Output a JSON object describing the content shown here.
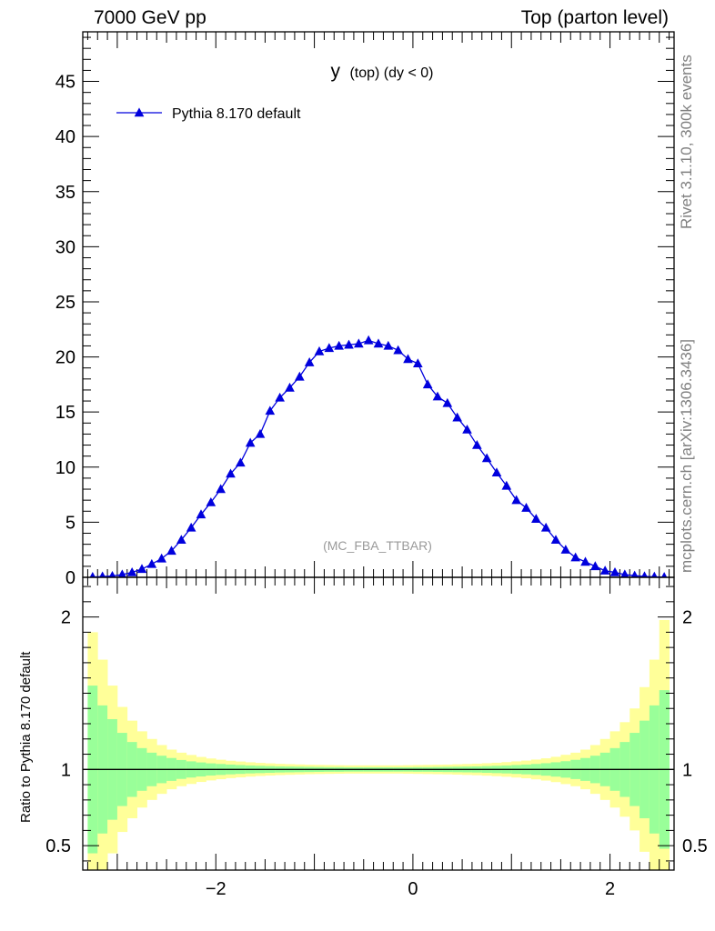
{
  "header": {
    "left": "7000 GeV pp",
    "right": "Top (parton level)"
  },
  "side_notes": {
    "rivet": "Rivet 3.1.10,  300k events",
    "source": "mcplots.cern.ch [arXiv:1306.3436]"
  },
  "colors": {
    "series": "#0000dd",
    "band_inner": "#99ff99",
    "band_outer": "#ffff99",
    "watermark": "#9a9a9a"
  },
  "chart_data": [
    {
      "type": "scatter",
      "title_main": "y",
      "title_sub": "(top) (dy < 0)",
      "watermark": "(MC_FBA_TTBAR)",
      "xlim": [
        -3.35,
        2.65
      ],
      "ylim": [
        0,
        49.5
      ],
      "y_ticks": [
        0,
        5,
        10,
        15,
        20,
        25,
        30,
        35,
        40,
        45
      ],
      "y_tick_labels": [
        "0",
        "5",
        "10",
        "15",
        "20",
        "25",
        "30",
        "35",
        "40",
        "45"
      ],
      "legend": {
        "position": "top-left",
        "marker": "triangle"
      },
      "series": [
        {
          "name": "Pythia 8.170 default",
          "x": [
            -3.25,
            -3.15,
            -3.05,
            -2.95,
            -2.85,
            -2.75,
            -2.65,
            -2.55,
            -2.45,
            -2.35,
            -2.25,
            -2.15,
            -2.05,
            -1.95,
            -1.85,
            -1.75,
            -1.65,
            -1.55,
            -1.45,
            -1.35,
            -1.25,
            -1.15,
            -1.05,
            -0.95,
            -0.85,
            -0.75,
            -0.65,
            -0.55,
            -0.45,
            -0.35,
            -0.25,
            -0.15,
            -0.05,
            0.05,
            0.15,
            0.25,
            0.35,
            0.45,
            0.55,
            0.65,
            0.75,
            0.85,
            0.95,
            1.05,
            1.15,
            1.25,
            1.35,
            1.45,
            1.55,
            1.65,
            1.75,
            1.85,
            1.95,
            2.05,
            2.15,
            2.25,
            2.35,
            2.45,
            2.55
          ],
          "values": [
            0.03,
            0.07,
            0.12,
            0.25,
            0.45,
            0.75,
            1.2,
            1.7,
            2.4,
            3.4,
            4.5,
            5.7,
            6.8,
            8.0,
            9.4,
            10.4,
            12.2,
            13.0,
            15.1,
            16.3,
            17.2,
            18.2,
            19.5,
            20.5,
            20.8,
            21.0,
            21.1,
            21.2,
            21.5,
            21.2,
            21.0,
            20.6,
            19.8,
            19.4,
            17.5,
            16.4,
            15.8,
            14.5,
            13.4,
            12.0,
            10.8,
            9.5,
            8.3,
            7.0,
            6.3,
            5.3,
            4.5,
            3.4,
            2.5,
            1.8,
            1.4,
            1.0,
            0.6,
            0.45,
            0.25,
            0.15,
            0.08,
            0.05,
            0.02
          ]
        }
      ]
    },
    {
      "type": "area",
      "ylabel": "Ratio to Pythia 8.170 default",
      "xlim": [
        -3.35,
        2.65
      ],
      "ylim": [
        0.34,
        2.26
      ],
      "x_ticks": [
        -2,
        0,
        2
      ],
      "x_tick_labels": [
        "−2",
        "0",
        "2"
      ],
      "y_ticks": [
        0.5,
        1,
        2
      ],
      "y_tick_labels": [
        "0.5",
        "1",
        "2"
      ],
      "reference_line": 1,
      "x_edges": [
        -3.3,
        -3.2,
        -3.1,
        -3.0,
        -2.9,
        -2.8,
        -2.7,
        -2.6,
        -2.5,
        -2.4,
        -2.3,
        -2.2,
        -2.1,
        -2.0,
        -1.9,
        -1.8,
        -1.7,
        -1.6,
        -1.5,
        -1.4,
        -1.3,
        -1.2,
        -1.1,
        -1.0,
        -0.9,
        -0.8,
        -0.7,
        -0.6,
        -0.5,
        -0.4,
        -0.3,
        -0.2,
        -0.1,
        0.0,
        0.1,
        0.2,
        0.3,
        0.4,
        0.5,
        0.6,
        0.7,
        0.8,
        0.9,
        1.0,
        1.1,
        1.2,
        1.3,
        1.4,
        1.5,
        1.6,
        1.7,
        1.8,
        1.9,
        2.0,
        2.1,
        2.2,
        2.3,
        2.4,
        2.5,
        2.6
      ],
      "band_inner_halfwidth": [
        0.55,
        0.42,
        0.33,
        0.24,
        0.18,
        0.14,
        0.11,
        0.09,
        0.075,
        0.062,
        0.053,
        0.046,
        0.04,
        0.036,
        0.032,
        0.029,
        0.026,
        0.024,
        0.022,
        0.02,
        0.019,
        0.018,
        0.017,
        0.016,
        0.015,
        0.015,
        0.014,
        0.014,
        0.014,
        0.014,
        0.014,
        0.014,
        0.014,
        0.015,
        0.015,
        0.016,
        0.017,
        0.018,
        0.019,
        0.02,
        0.022,
        0.024,
        0.026,
        0.029,
        0.032,
        0.036,
        0.041,
        0.047,
        0.054,
        0.063,
        0.075,
        0.09,
        0.11,
        0.14,
        0.18,
        0.24,
        0.32,
        0.42,
        0.52
      ],
      "band_outer_halfwidth": [
        0.9,
        0.72,
        0.55,
        0.41,
        0.32,
        0.25,
        0.2,
        0.16,
        0.13,
        0.11,
        0.095,
        0.082,
        0.072,
        0.064,
        0.057,
        0.052,
        0.047,
        0.043,
        0.04,
        0.037,
        0.035,
        0.033,
        0.031,
        0.03,
        0.029,
        0.028,
        0.027,
        0.027,
        0.027,
        0.027,
        0.027,
        0.027,
        0.028,
        0.029,
        0.03,
        0.031,
        0.032,
        0.034,
        0.036,
        0.038,
        0.041,
        0.044,
        0.048,
        0.053,
        0.058,
        0.065,
        0.073,
        0.083,
        0.096,
        0.11,
        0.13,
        0.16,
        0.2,
        0.25,
        0.31,
        0.4,
        0.54,
        0.72,
        0.98
      ]
    }
  ]
}
